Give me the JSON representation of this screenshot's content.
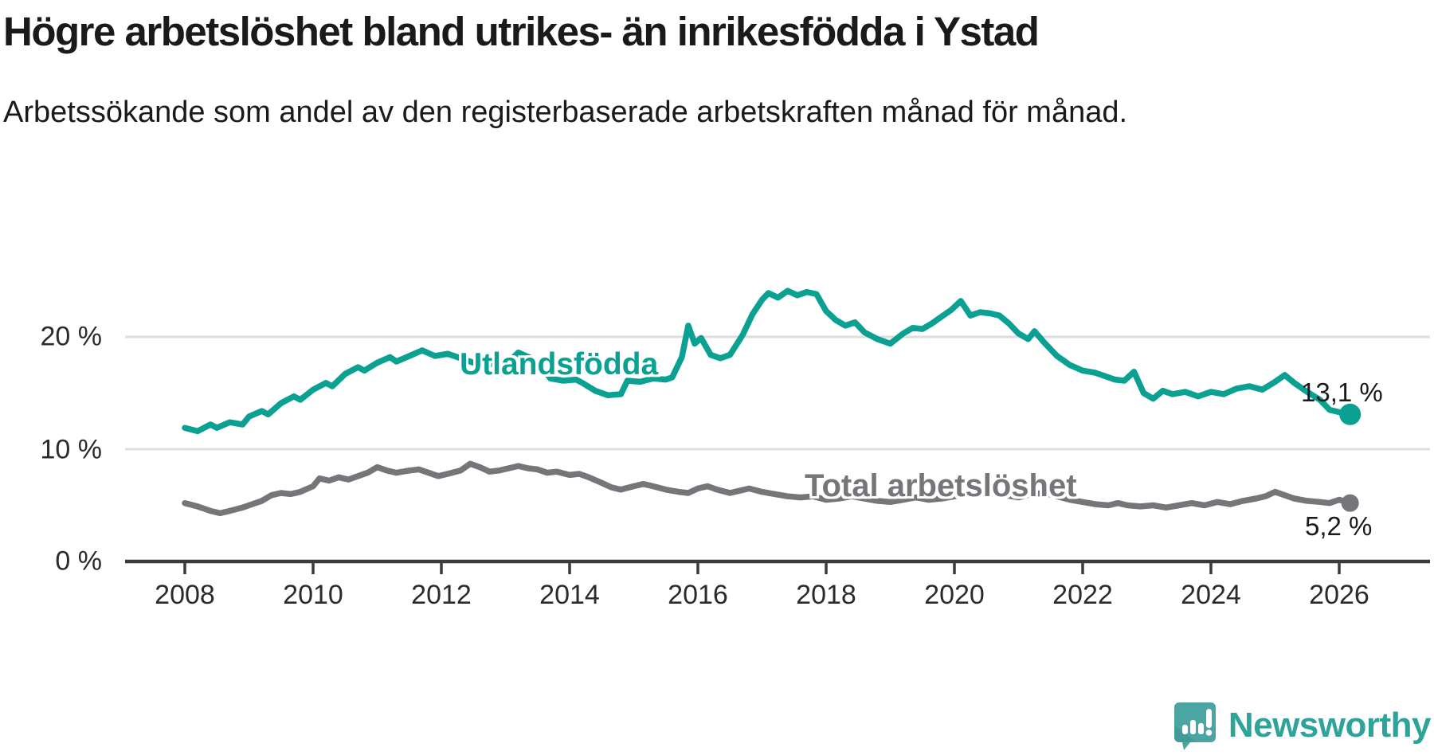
{
  "header": {
    "title": "Högre arbetslöshet bland utrikes- än inrikesfödda i Ystad",
    "subtitle": "Arbetssökande som andel av den registerbaserade arbetskraften månad för månad."
  },
  "footer": {
    "brand": "Newsworthy"
  },
  "colors": {
    "accent_teal": "#0aa092",
    "line_gray": "#76767a",
    "gridline": "#dedede",
    "axis": "#3a3a3e",
    "text": "#1a1a1a",
    "brand_teal": "#2ea39a",
    "logo_bubble": "#4aa5a3"
  },
  "chart_data": {
    "type": "line",
    "title": "Högre arbetslöshet bland utrikes- än inrikesfödda i Ystad",
    "subtitle": "Arbetssökande som andel av den registerbaserade arbetskraften månad för månad.",
    "xlabel": "",
    "ylabel": "",
    "grid": "horizontal-only",
    "legend_position": "inline-labels-on-lines",
    "xlim": [
      2007.1,
      2027.4
    ],
    "ylim": [
      0,
      26
    ],
    "x_ticks": [
      2008,
      2010,
      2012,
      2014,
      2016,
      2018,
      2020,
      2022,
      2024,
      2026
    ],
    "y_ticks": [
      {
        "value": 0,
        "label": "0 %"
      },
      {
        "value": 10,
        "label": "10 %"
      },
      {
        "value": 20,
        "label": "20 %"
      }
    ],
    "series": [
      {
        "name": "Utlandsfödda",
        "color": "#0aa092",
        "end_label": "13,1 %",
        "end_value": 13.1,
        "points": [
          [
            2008.0,
            11.9
          ],
          [
            2008.2,
            11.6
          ],
          [
            2008.4,
            12.2
          ],
          [
            2008.5,
            11.9
          ],
          [
            2008.7,
            12.4
          ],
          [
            2008.9,
            12.2
          ],
          [
            2009.0,
            12.9
          ],
          [
            2009.2,
            13.4
          ],
          [
            2009.3,
            13.1
          ],
          [
            2009.5,
            14.1
          ],
          [
            2009.7,
            14.7
          ],
          [
            2009.8,
            14.4
          ],
          [
            2010.0,
            15.3
          ],
          [
            2010.2,
            15.9
          ],
          [
            2010.3,
            15.6
          ],
          [
            2010.5,
            16.7
          ],
          [
            2010.7,
            17.3
          ],
          [
            2010.8,
            17.0
          ],
          [
            2011.0,
            17.7
          ],
          [
            2011.2,
            18.2
          ],
          [
            2011.3,
            17.8
          ],
          [
            2011.5,
            18.3
          ],
          [
            2011.7,
            18.8
          ],
          [
            2011.9,
            18.3
          ],
          [
            2012.1,
            18.5
          ],
          [
            2012.3,
            18.1
          ],
          [
            2012.5,
            17.7
          ],
          [
            2012.7,
            17.4
          ],
          [
            2012.9,
            17.9
          ],
          [
            2013.0,
            17.5
          ],
          [
            2013.2,
            18.6
          ],
          [
            2013.4,
            18.1
          ],
          [
            2013.5,
            17.8
          ],
          [
            2013.7,
            16.3
          ],
          [
            2013.9,
            16.1
          ],
          [
            2014.1,
            16.2
          ],
          [
            2014.2,
            15.9
          ],
          [
            2014.4,
            15.2
          ],
          [
            2014.6,
            14.8
          ],
          [
            2014.8,
            14.9
          ],
          [
            2014.9,
            16.1
          ],
          [
            2015.1,
            16.0
          ],
          [
            2015.3,
            16.3
          ],
          [
            2015.5,
            16.2
          ],
          [
            2015.6,
            16.4
          ],
          [
            2015.75,
            18.2
          ],
          [
            2015.85,
            21.0
          ],
          [
            2015.95,
            19.4
          ],
          [
            2016.05,
            19.9
          ],
          [
            2016.2,
            18.4
          ],
          [
            2016.35,
            18.1
          ],
          [
            2016.5,
            18.4
          ],
          [
            2016.7,
            20.2
          ],
          [
            2016.85,
            22.0
          ],
          [
            2017.0,
            23.3
          ],
          [
            2017.1,
            23.9
          ],
          [
            2017.25,
            23.5
          ],
          [
            2017.4,
            24.1
          ],
          [
            2017.55,
            23.7
          ],
          [
            2017.7,
            24.0
          ],
          [
            2017.85,
            23.8
          ],
          [
            2018.0,
            22.3
          ],
          [
            2018.15,
            21.5
          ],
          [
            2018.3,
            21.0
          ],
          [
            2018.45,
            21.3
          ],
          [
            2018.6,
            20.4
          ],
          [
            2018.8,
            19.8
          ],
          [
            2019.0,
            19.4
          ],
          [
            2019.2,
            20.3
          ],
          [
            2019.35,
            20.8
          ],
          [
            2019.5,
            20.7
          ],
          [
            2019.65,
            21.2
          ],
          [
            2019.8,
            21.8
          ],
          [
            2019.95,
            22.4
          ],
          [
            2020.1,
            23.2
          ],
          [
            2020.25,
            21.9
          ],
          [
            2020.4,
            22.2
          ],
          [
            2020.55,
            22.1
          ],
          [
            2020.7,
            21.9
          ],
          [
            2020.85,
            21.2
          ],
          [
            2021.0,
            20.3
          ],
          [
            2021.15,
            19.8
          ],
          [
            2021.25,
            20.5
          ],
          [
            2021.4,
            19.5
          ],
          [
            2021.6,
            18.3
          ],
          [
            2021.8,
            17.5
          ],
          [
            2022.0,
            17.0
          ],
          [
            2022.2,
            16.8
          ],
          [
            2022.35,
            16.5
          ],
          [
            2022.5,
            16.2
          ],
          [
            2022.65,
            16.1
          ],
          [
            2022.8,
            16.9
          ],
          [
            2022.95,
            15.0
          ],
          [
            2023.1,
            14.5
          ],
          [
            2023.25,
            15.2
          ],
          [
            2023.4,
            14.9
          ],
          [
            2023.6,
            15.1
          ],
          [
            2023.8,
            14.7
          ],
          [
            2024.0,
            15.1
          ],
          [
            2024.2,
            14.9
          ],
          [
            2024.4,
            15.4
          ],
          [
            2024.6,
            15.6
          ],
          [
            2024.8,
            15.3
          ],
          [
            2025.0,
            16.0
          ],
          [
            2025.15,
            16.6
          ],
          [
            2025.3,
            15.9
          ],
          [
            2025.5,
            15.1
          ],
          [
            2025.7,
            14.4
          ],
          [
            2025.85,
            13.5
          ],
          [
            2026.0,
            13.3
          ],
          [
            2026.17,
            13.1
          ]
        ]
      },
      {
        "name": "Total arbetslöshet",
        "color": "#76767a",
        "end_label": "5,2 %",
        "end_value": 5.2,
        "points": [
          [
            2008.0,
            5.2
          ],
          [
            2008.2,
            4.9
          ],
          [
            2008.4,
            4.5
          ],
          [
            2008.55,
            4.3
          ],
          [
            2008.7,
            4.5
          ],
          [
            2008.9,
            4.8
          ],
          [
            2009.0,
            5.0
          ],
          [
            2009.2,
            5.4
          ],
          [
            2009.35,
            5.9
          ],
          [
            2009.5,
            6.1
          ],
          [
            2009.65,
            6.0
          ],
          [
            2009.8,
            6.2
          ],
          [
            2010.0,
            6.7
          ],
          [
            2010.1,
            7.4
          ],
          [
            2010.25,
            7.2
          ],
          [
            2010.4,
            7.5
          ],
          [
            2010.55,
            7.3
          ],
          [
            2010.7,
            7.6
          ],
          [
            2010.85,
            7.9
          ],
          [
            2011.0,
            8.4
          ],
          [
            2011.15,
            8.1
          ],
          [
            2011.3,
            7.9
          ],
          [
            2011.5,
            8.1
          ],
          [
            2011.65,
            8.2
          ],
          [
            2011.8,
            7.9
          ],
          [
            2011.95,
            7.6
          ],
          [
            2012.1,
            7.8
          ],
          [
            2012.3,
            8.1
          ],
          [
            2012.45,
            8.7
          ],
          [
            2012.6,
            8.4
          ],
          [
            2012.75,
            8.0
          ],
          [
            2012.9,
            8.1
          ],
          [
            2013.05,
            8.3
          ],
          [
            2013.2,
            8.5
          ],
          [
            2013.35,
            8.3
          ],
          [
            2013.5,
            8.2
          ],
          [
            2013.65,
            7.9
          ],
          [
            2013.8,
            8.0
          ],
          [
            2014.0,
            7.7
          ],
          [
            2014.15,
            7.8
          ],
          [
            2014.3,
            7.5
          ],
          [
            2014.5,
            7.0
          ],
          [
            2014.65,
            6.6
          ],
          [
            2014.8,
            6.4
          ],
          [
            2015.0,
            6.7
          ],
          [
            2015.15,
            6.9
          ],
          [
            2015.3,
            6.7
          ],
          [
            2015.5,
            6.4
          ],
          [
            2015.7,
            6.2
          ],
          [
            2015.85,
            6.1
          ],
          [
            2016.0,
            6.5
          ],
          [
            2016.15,
            6.7
          ],
          [
            2016.3,
            6.4
          ],
          [
            2016.5,
            6.1
          ],
          [
            2016.65,
            6.3
          ],
          [
            2016.8,
            6.5
          ],
          [
            2017.0,
            6.2
          ],
          [
            2017.2,
            6.0
          ],
          [
            2017.4,
            5.8
          ],
          [
            2017.6,
            5.7
          ],
          [
            2017.8,
            5.8
          ],
          [
            2018.0,
            5.5
          ],
          [
            2018.2,
            5.6
          ],
          [
            2018.4,
            5.8
          ],
          [
            2018.6,
            5.6
          ],
          [
            2018.8,
            5.4
          ],
          [
            2019.0,
            5.3
          ],
          [
            2019.2,
            5.5
          ],
          [
            2019.4,
            5.7
          ],
          [
            2019.6,
            5.5
          ],
          [
            2019.8,
            5.6
          ],
          [
            2020.0,
            5.8
          ],
          [
            2020.2,
            6.1
          ],
          [
            2020.4,
            6.3
          ],
          [
            2020.6,
            6.1
          ],
          [
            2020.8,
            5.9
          ],
          [
            2021.0,
            5.7
          ],
          [
            2021.2,
            6.0
          ],
          [
            2021.4,
            6.1
          ],
          [
            2021.6,
            5.8
          ],
          [
            2021.8,
            5.5
          ],
          [
            2022.0,
            5.3
          ],
          [
            2022.2,
            5.1
          ],
          [
            2022.4,
            5.0
          ],
          [
            2022.55,
            5.2
          ],
          [
            2022.7,
            5.0
          ],
          [
            2022.9,
            4.9
          ],
          [
            2023.1,
            5.0
          ],
          [
            2023.3,
            4.8
          ],
          [
            2023.5,
            5.0
          ],
          [
            2023.7,
            5.2
          ],
          [
            2023.9,
            5.0
          ],
          [
            2024.1,
            5.3
          ],
          [
            2024.3,
            5.1
          ],
          [
            2024.5,
            5.4
          ],
          [
            2024.7,
            5.6
          ],
          [
            2024.85,
            5.8
          ],
          [
            2025.0,
            6.2
          ],
          [
            2025.15,
            5.9
          ],
          [
            2025.3,
            5.6
          ],
          [
            2025.5,
            5.4
          ],
          [
            2025.7,
            5.3
          ],
          [
            2025.85,
            5.2
          ],
          [
            2026.0,
            5.5
          ],
          [
            2026.17,
            5.2
          ]
        ]
      }
    ]
  }
}
